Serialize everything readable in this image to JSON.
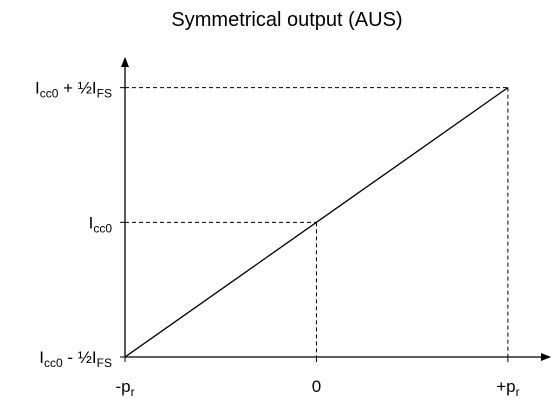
{
  "chart_data": {
    "type": "line",
    "title": "Symmetrical output (AUS)",
    "x_ticks": [
      {
        "main": "-p",
        "sub": "r"
      },
      {
        "main": "0",
        "sub": ""
      },
      {
        "main": "+p",
        "sub": "r"
      }
    ],
    "y_ticks": [
      {
        "main": "I",
        "sub": "cc0",
        "main2": " - ½I",
        "sub2": "FS"
      },
      {
        "main": "I",
        "sub": "cc0",
        "main2": "",
        "sub2": ""
      },
      {
        "main": "I",
        "sub": "cc0",
        "main2": " + ½I",
        "sub2": "FS"
      }
    ],
    "series": [
      {
        "x": [
          -1,
          0,
          1
        ],
        "y": [
          -1,
          0,
          1
        ]
      }
    ],
    "xlim": [
      -1,
      1.22
    ],
    "ylim": [
      -1,
      1.22
    ],
    "guides": "dashed",
    "colors": {
      "line": "#000000"
    }
  }
}
